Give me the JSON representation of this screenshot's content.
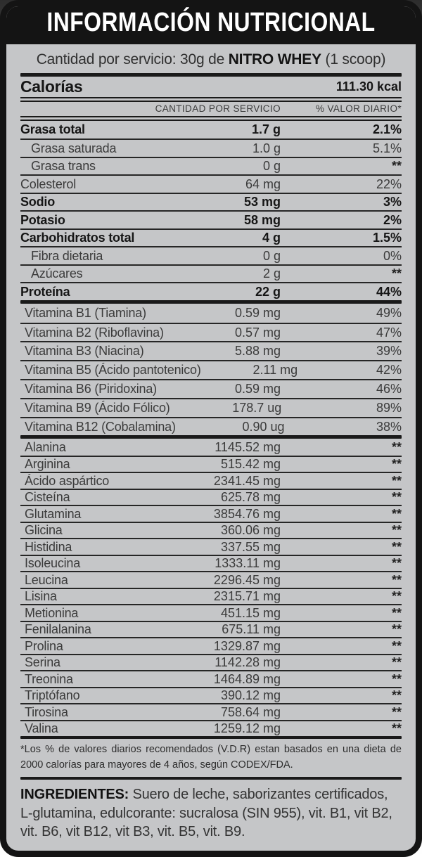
{
  "label": {
    "title": "INFORMACIÓN NUTRICIONAL",
    "serving": {
      "prefix": "Cantidad por servicio: 30g de ",
      "brand": "NITRO WHEY",
      "suffix": " (1 scoop)"
    },
    "calories": {
      "label": "Calorías",
      "value": "111.30 kcal"
    },
    "columns": {
      "amount": "CANTIDAD POR SERVICIO",
      "dv": "% VALOR DIARIO*"
    },
    "nutrients": [
      {
        "name": "Grasa total",
        "amount": "1.7 g",
        "dv": "2.1%",
        "bold": true,
        "indent": false
      },
      {
        "name": "Grasa saturada",
        "amount": "1.0 g",
        "dv": "5.1%",
        "bold": false,
        "indent": true
      },
      {
        "name": "Grasa trans",
        "amount": "0 g",
        "dv": "**",
        "bold": false,
        "indent": true
      },
      {
        "name": "Colesterol",
        "amount": "64 mg",
        "dv": "22%",
        "bold": false,
        "indent": false
      },
      {
        "name": "Sodio",
        "amount": "53 mg",
        "dv": "3%",
        "bold": true,
        "indent": false
      },
      {
        "name": "Potasio",
        "amount": "58 mg",
        "dv": "2%",
        "bold": true,
        "indent": false
      },
      {
        "name": "Carbohidratos total",
        "amount": "4 g",
        "dv": "1.5%",
        "bold": true,
        "indent": false
      },
      {
        "name": "Fibra dietaria",
        "amount": "0 g",
        "dv": "0%",
        "bold": false,
        "indent": true
      },
      {
        "name": "Azúcares",
        "amount": "2 g",
        "dv": "**",
        "bold": false,
        "indent": true
      },
      {
        "name": "Proteína",
        "amount": "22 g",
        "dv": "44%",
        "bold": true,
        "indent": false
      }
    ],
    "vitamins": [
      {
        "name": "Vitamina B1 (Tiamina)",
        "amount": "0.59 mg",
        "dv": "49%"
      },
      {
        "name": "Vitamina B2 (Riboflavina)",
        "amount": "0.57 mg",
        "dv": "47%"
      },
      {
        "name": "Vitamina B3 (Niacina)",
        "amount": "5.88 mg",
        "dv": "39%"
      },
      {
        "name": "Vitamina B5 (Ácido pantotenico)",
        "amount": "2.11 mg",
        "dv": "42%"
      },
      {
        "name": "Vitamina B6 (Piridoxina)",
        "amount": "0.59 mg",
        "dv": "46%"
      },
      {
        "name": "Vitamina B9 (Ácido Fólico)",
        "amount": "178.7 ug",
        "dv": "89%"
      },
      {
        "name": "Vitamina B12 (Cobalamina)",
        "amount": "0.90 ug",
        "dv": "38%"
      }
    ],
    "amino_acids": [
      {
        "name": "Alanina",
        "amount": "1145.52 mg",
        "dv": "**"
      },
      {
        "name": "Arginina",
        "amount": "515.42 mg",
        "dv": "**"
      },
      {
        "name": "Ácido aspártico",
        "amount": "2341.45 mg",
        "dv": "**"
      },
      {
        "name": "Cisteína",
        "amount": "625.78 mg",
        "dv": "**"
      },
      {
        "name": "Glutamina",
        "amount": "3854.76 mg",
        "dv": "**"
      },
      {
        "name": "Glicina",
        "amount": "360.06 mg",
        "dv": "**"
      },
      {
        "name": "Histidina",
        "amount": "337.55 mg",
        "dv": "**"
      },
      {
        "name": "Isoleucina",
        "amount": "1333.11 mg",
        "dv": "**"
      },
      {
        "name": "Leucina",
        "amount": "2296.45 mg",
        "dv": "**"
      },
      {
        "name": "Lisina",
        "amount": "2315.71 mg",
        "dv": "**"
      },
      {
        "name": "Metionina",
        "amount": "451.15 mg",
        "dv": "**"
      },
      {
        "name": "Fenilalanina",
        "amount": "675.11 mg",
        "dv": "**"
      },
      {
        "name": "Prolina",
        "amount": "1329.87 mg",
        "dv": "**"
      },
      {
        "name": "Serina",
        "amount": "1142.28 mg",
        "dv": "**"
      },
      {
        "name": "Treonina",
        "amount": "1464.89 mg",
        "dv": "**"
      },
      {
        "name": "Triptófano",
        "amount": "390.12 mg",
        "dv": "**"
      },
      {
        "name": "Tirosina",
        "amount": "758.64 mg",
        "dv": "**"
      },
      {
        "name": "Valina",
        "amount": "1259.12 mg",
        "dv": "**"
      }
    ],
    "footnote": "*Los % de valores diarios recomendados (V.D.R) estan basados en una dieta de 2000 calorías para mayores de 4 años, según CODEX/FDA.",
    "ingredients": {
      "label": "INGREDIENTES:",
      "text": "Suero de leche, saborizantes certificados, L-glutamina, edulcorante: sucralosa (SIN 955), vit. B1, vit B2, vit. B6, vit B12, vit B3, vit. B5, vit. B9."
    },
    "colors": {
      "band_black": "#141414",
      "body_gray": "#c5c6c8",
      "rule_dark": "#1a1a1a",
      "text_regular": "#3b3b3b",
      "text_bold": "#161616"
    }
  }
}
